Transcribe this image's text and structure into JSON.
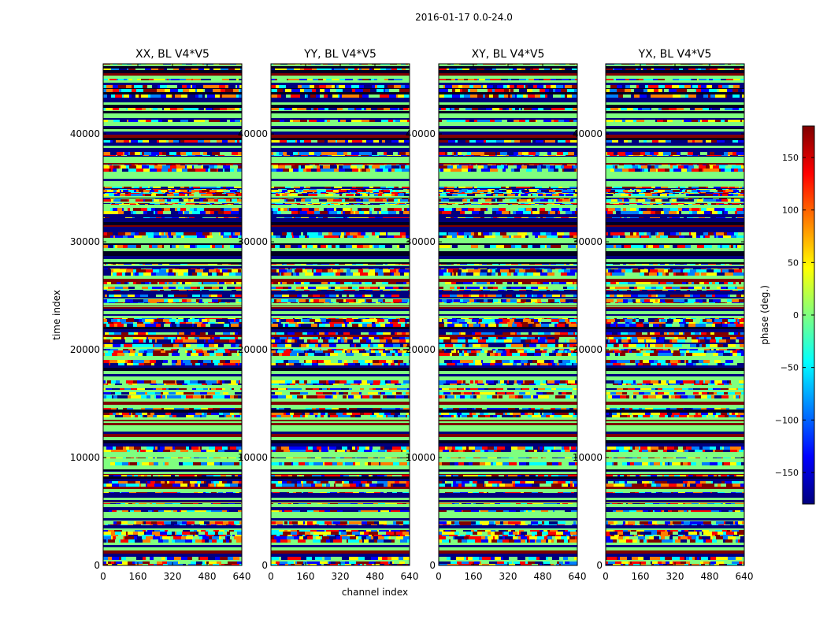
{
  "chart_data": {
    "type": "heatmap",
    "suptitle": "2016-01-17 0.0-24.0",
    "panels": [
      {
        "title": "XX, BL V4*V5"
      },
      {
        "title": "YY, BL V4*V5"
      },
      {
        "title": "XY, BL V4*V5"
      },
      {
        "title": "YX, BL V4*V5"
      }
    ],
    "xlabel": "channel index",
    "ylabel": "time index",
    "xlim": [
      0,
      640
    ],
    "ylim": [
      0,
      46500
    ],
    "x_ticks": [
      0,
      160,
      320,
      480,
      640
    ],
    "y_ticks": [
      0,
      10000,
      20000,
      30000,
      40000
    ],
    "colorbar": {
      "label": "phase (deg.)",
      "range": [
        -180,
        180
      ],
      "ticks": [
        150,
        100,
        50,
        0,
        -50,
        -100,
        -150
      ],
      "tick_labels": [
        "150",
        "100",
        "50",
        "0",
        "−50",
        "−100",
        "−150"
      ],
      "colormap": "jet",
      "colors": [
        "#00007f",
        "#0000ff",
        "#007fff",
        "#00ffff",
        "#7fff7f",
        "#ffff00",
        "#ff7f00",
        "#ff0000",
        "#7f0000"
      ]
    }
  }
}
